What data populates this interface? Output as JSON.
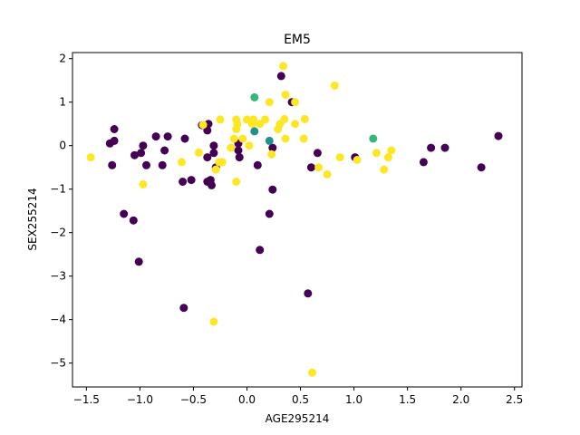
{
  "chart_data": {
    "type": "scatter",
    "title": "EM5",
    "xlabel": "AGE295214",
    "ylabel": "SEX255214",
    "xlim": [
      -1.63,
      2.57
    ],
    "ylim": [
      -5.55,
      2.14
    ],
    "xticks": [
      -1.5,
      -1.0,
      -0.5,
      0.0,
      0.5,
      1.0,
      1.5,
      2.0,
      2.5
    ],
    "xtick_labels": [
      "−1.5",
      "−1.0",
      "−0.5",
      "0.0",
      "0.5",
      "1.0",
      "1.5",
      "2.0",
      "2.5"
    ],
    "yticks": [
      2,
      1,
      0,
      -1,
      -2,
      -3,
      -4,
      -5
    ],
    "ytick_labels": [
      "2",
      "1",
      "0",
      "−1",
      "−2",
      "−3",
      "−4",
      "−5"
    ],
    "grid": false,
    "legend": false,
    "series": [
      {
        "color": "#440154",
        "points": [
          [
            -1.28,
            0.05
          ],
          [
            -1.24,
            0.38
          ],
          [
            -1.24,
            0.11
          ],
          [
            -1.26,
            -0.45
          ],
          [
            -1.15,
            -1.57
          ],
          [
            -1.06,
            -1.72
          ],
          [
            -1.01,
            -2.67
          ],
          [
            -1.05,
            -0.22
          ],
          [
            -0.99,
            -0.17
          ],
          [
            -0.97,
            0.0
          ],
          [
            -0.94,
            -0.45
          ],
          [
            -0.85,
            0.21
          ],
          [
            -0.77,
            -0.11
          ],
          [
            -0.79,
            -0.45
          ],
          [
            -0.74,
            0.21
          ],
          [
            -0.6,
            -0.83
          ],
          [
            -0.58,
            0.16
          ],
          [
            -0.59,
            -3.73
          ],
          [
            -0.52,
            -0.79
          ],
          [
            -0.42,
            0.47
          ],
          [
            -0.37,
            0.35
          ],
          [
            -0.36,
            0.5
          ],
          [
            -0.37,
            -0.27
          ],
          [
            -0.37,
            -0.83
          ],
          [
            -0.34,
            -0.79
          ],
          [
            -0.33,
            -0.91
          ],
          [
            -0.31,
            0.0
          ],
          [
            -0.31,
            -0.17
          ],
          [
            -0.29,
            -0.5
          ],
          [
            -0.08,
            0.05
          ],
          [
            -0.08,
            -0.11
          ],
          [
            -0.07,
            -0.27
          ],
          [
            0.1,
            -0.45
          ],
          [
            0.12,
            -2.4
          ],
          [
            0.21,
            -1.57
          ],
          [
            0.24,
            -1.01
          ],
          [
            0.24,
            -0.05
          ],
          [
            0.32,
            1.6
          ],
          [
            0.42,
            1.0
          ],
          [
            0.57,
            -3.4
          ],
          [
            0.6,
            -0.5
          ],
          [
            0.66,
            -0.17
          ],
          [
            1.01,
            -0.27
          ],
          [
            1.65,
            -0.38
          ],
          [
            1.72,
            -0.05
          ],
          [
            1.85,
            -0.05
          ],
          [
            2.19,
            -0.5
          ],
          [
            2.35,
            0.22
          ]
        ]
      },
      {
        "color": "#fde725",
        "points": [
          [
            -1.46,
            -0.27
          ],
          [
            -0.97,
            -0.89
          ],
          [
            -0.61,
            -0.38
          ],
          [
            -0.45,
            -0.16
          ],
          [
            -0.41,
            0.48
          ],
          [
            -0.29,
            -0.55
          ],
          [
            -0.26,
            -0.38
          ],
          [
            -0.23,
            -0.38
          ],
          [
            -0.25,
            0.6
          ],
          [
            -0.15,
            -0.05
          ],
          [
            -0.12,
            0.16
          ],
          [
            -0.1,
            0.6
          ],
          [
            -0.09,
            0.49
          ],
          [
            -0.1,
            0.38
          ],
          [
            -0.1,
            -0.83
          ],
          [
            -0.04,
            0.16
          ],
          [
            0.0,
            0.6
          ],
          [
            0.02,
            0.0
          ],
          [
            0.05,
            0.5
          ],
          [
            0.06,
            0.6
          ],
          [
            0.12,
            0.5
          ],
          [
            0.17,
            0.6
          ],
          [
            0.21,
            1.0
          ],
          [
            0.23,
            -0.2
          ],
          [
            0.29,
            0.38
          ],
          [
            0.31,
            0.5
          ],
          [
            0.34,
            1.83
          ],
          [
            0.35,
            0.61
          ],
          [
            0.36,
            1.17
          ],
          [
            0.36,
            0.16
          ],
          [
            0.45,
            1.0
          ],
          [
            0.45,
            0.5
          ],
          [
            0.53,
            0.16
          ],
          [
            0.54,
            0.61
          ],
          [
            0.61,
            -5.22
          ],
          [
            0.67,
            -0.5
          ],
          [
            0.75,
            -0.66
          ],
          [
            0.82,
            1.38
          ],
          [
            0.87,
            -0.27
          ],
          [
            1.03,
            -0.33
          ],
          [
            1.21,
            -0.17
          ],
          [
            1.28,
            -0.55
          ],
          [
            1.32,
            -0.27
          ],
          [
            1.35,
            -0.11
          ],
          [
            -0.31,
            -4.05
          ]
        ]
      },
      {
        "color": "#35b779",
        "points": [
          [
            0.07,
            1.11
          ],
          [
            1.18,
            0.16
          ]
        ]
      },
      {
        "color": "#21918c",
        "points": [
          [
            0.07,
            0.33
          ],
          [
            0.21,
            0.11
          ]
        ]
      }
    ]
  }
}
